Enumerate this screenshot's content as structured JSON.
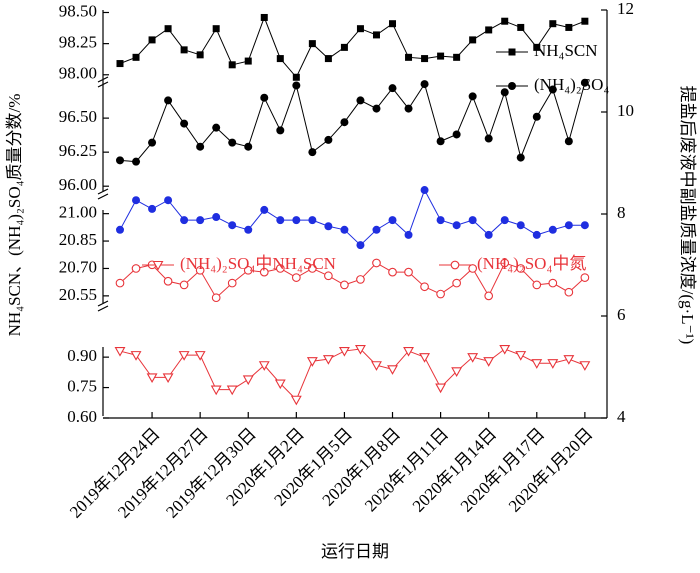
{
  "chart_data": {
    "type": "line",
    "xlabel": "运行日期",
    "ylabel": "NH₄SCN、(NH₄)₂SO₄质量分数/%",
    "y2label": "提盐后废液中副盐质量浓度/(g·L⁻¹)",
    "categories": [
      null,
      null,
      "2019年12月24日",
      null,
      null,
      "2019年12月27日",
      null,
      null,
      "2019年12月30日",
      null,
      null,
      "2020年1月2日",
      null,
      null,
      "2020年1月5日",
      null,
      null,
      "2020年1月8日",
      null,
      null,
      "2020年1月11日",
      null,
      null,
      "2020年1月14日",
      null,
      null,
      "2020年1月17日",
      null,
      null,
      "2020年1月20日"
    ],
    "y_segments": [
      {
        "ylim": [
          97.95,
          98.52
        ],
        "yticks": [
          {
            "value": 98.0,
            "label": "98.00"
          },
          {
            "value": 98.25,
            "label": "98.25"
          },
          {
            "value": 98.5,
            "label": "98.50"
          }
        ]
      },
      {
        "ylim": [
          95.95,
          96.78
        ],
        "yticks": [
          {
            "value": 96.0,
            "label": "96.00"
          },
          {
            "value": 96.25,
            "label": "96.25"
          },
          {
            "value": 96.5,
            "label": "96.50"
          }
        ]
      },
      {
        "ylim": [
          20.5,
          21.02
        ],
        "yticks": [
          {
            "value": 20.55,
            "label": "20.55"
          },
          {
            "value": 20.7,
            "label": "20.70"
          },
          {
            "value": 20.85,
            "label": "20.85"
          },
          {
            "value": 21.0,
            "label": "21.00"
          }
        ]
      },
      {
        "ylim": [
          0.6,
          0.95
        ],
        "yticks": [
          {
            "value": 0.6,
            "label": "0.60"
          },
          {
            "value": 0.75,
            "label": "0.75"
          },
          {
            "value": 0.9,
            "label": "0.90"
          }
        ]
      }
    ],
    "y2lim": [
      4,
      12
    ],
    "y2ticks": [
      4,
      6,
      8,
      10,
      12
    ],
    "series": [
      {
        "name": "NH₄SCN",
        "color": "#000000",
        "marker": "square",
        "segment": 0,
        "values": [
          98.09,
          98.14,
          98.28,
          98.37,
          98.2,
          98.16,
          98.37,
          98.08,
          98.11,
          98.46,
          98.13,
          97.98,
          98.25,
          98.13,
          98.22,
          98.37,
          98.32,
          98.41,
          98.14,
          98.13,
          98.15,
          98.14,
          98.28,
          98.36,
          98.43,
          98.38,
          98.22,
          98.41,
          98.38,
          98.43
        ]
      },
      {
        "name": "(NH₄)₂SO₄",
        "color": "#000000",
        "marker": "circle",
        "segment": 1,
        "values": [
          96.19,
          96.18,
          96.32,
          96.63,
          96.46,
          96.29,
          96.43,
          96.32,
          96.29,
          96.65,
          96.41,
          96.74,
          96.25,
          96.34,
          96.47,
          96.63,
          96.57,
          96.72,
          96.57,
          96.75,
          96.33,
          96.38,
          96.66,
          96.35,
          96.69,
          96.21,
          96.51,
          96.71,
          96.33,
          96.76
        ]
      },
      {
        "color": "#1f2ee0",
        "marker": "circle",
        "axis": "y2",
        "values": [
          7.69,
          8.27,
          8.1,
          8.27,
          7.88,
          7.88,
          7.94,
          7.78,
          7.69,
          8.08,
          7.88,
          7.88,
          7.88,
          7.76,
          7.69,
          7.39,
          7.69,
          7.88,
          7.59,
          8.47,
          7.88,
          7.78,
          7.88,
          7.59,
          7.88,
          7.78,
          7.59,
          7.69,
          7.78,
          7.78
        ]
      },
      {
        "name": "(NH₄)₂SO₄中NH₄SCN",
        "color": "#e8343a",
        "marker": "open-triangle",
        "segment": 3,
        "values": [
          0.93,
          0.91,
          0.8,
          0.8,
          0.91,
          0.91,
          0.74,
          0.74,
          0.79,
          0.86,
          0.77,
          0.69,
          0.88,
          0.89,
          0.93,
          0.94,
          0.86,
          0.84,
          0.93,
          0.9,
          0.75,
          0.83,
          0.9,
          0.88,
          0.94,
          0.91,
          0.87,
          0.87,
          0.89,
          0.86
        ]
      },
      {
        "name": "(NH₄)₂SO₄中氮",
        "color": "#e8343a",
        "marker": "open-circle",
        "segment": 2,
        "values": [
          20.62,
          20.7,
          20.72,
          20.63,
          20.61,
          20.69,
          20.54,
          20.62,
          20.69,
          20.68,
          20.7,
          20.65,
          20.7,
          20.66,
          20.61,
          20.64,
          20.73,
          20.68,
          20.68,
          20.6,
          20.56,
          20.62,
          20.7,
          20.55,
          20.73,
          20.7,
          20.61,
          20.62,
          20.57,
          20.65
        ]
      }
    ]
  }
}
